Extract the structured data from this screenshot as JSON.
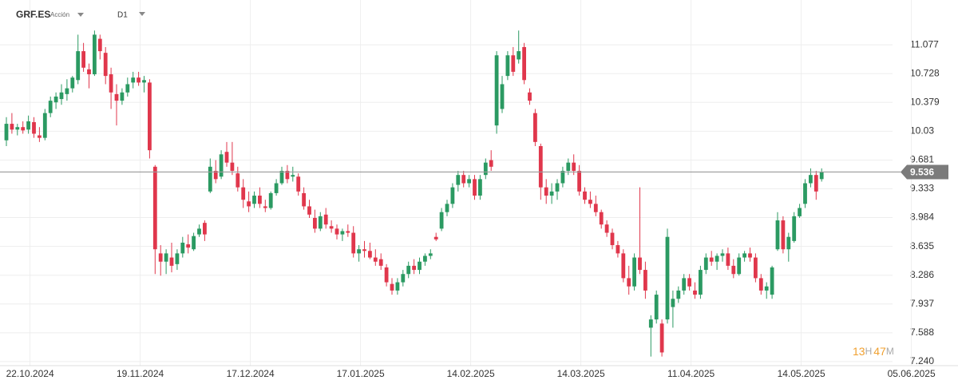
{
  "header": {
    "symbol": "GRF.ES",
    "instrument": "Acción",
    "timeframe": "D1"
  },
  "countdown": [
    "13",
    "H",
    "47",
    "M"
  ],
  "chart_data": {
    "type": "candlestick",
    "up_color": "#2b9a62",
    "down_color": "#e0374c",
    "grid": true,
    "last_price": 9.536,
    "ylim": [
      7.19,
      11.62
    ],
    "yticks": [
      {
        "value": 7.24,
        "label": "7.240"
      },
      7.588,
      7.937,
      8.286,
      8.635,
      8.984,
      9.333,
      9.681,
      10.03,
      10.379,
      10.728,
      11.077
    ],
    "categories": [
      null,
      null,
      null,
      null,
      "22.10.2024",
      null,
      null,
      null,
      null,
      null,
      null,
      null,
      null,
      null,
      null,
      null,
      null,
      null,
      null,
      null,
      null,
      null,
      null,
      null,
      "19.11.2024",
      null,
      null,
      null,
      null,
      null,
      null,
      null,
      null,
      null,
      null,
      null,
      null,
      null,
      null,
      null,
      null,
      null,
      null,
      null,
      "17.12.2024",
      null,
      null,
      null,
      null,
      null,
      null,
      null,
      null,
      null,
      null,
      null,
      null,
      null,
      null,
      null,
      null,
      null,
      null,
      null,
      "17.01.2025",
      null,
      null,
      null,
      null,
      null,
      null,
      null,
      null,
      null,
      null,
      null,
      null,
      null,
      null,
      null,
      null,
      null,
      null,
      null,
      "14.02.2025",
      null,
      null,
      null,
      null,
      null,
      null,
      null,
      null,
      null,
      null,
      null,
      null,
      null,
      null,
      null,
      null,
      null,
      null,
      null,
      "14.03.2025",
      null,
      null,
      null,
      null,
      null,
      null,
      null,
      null,
      null,
      null,
      null,
      null,
      null,
      null,
      null,
      null,
      null,
      null,
      null,
      "11.04.2025",
      null,
      null,
      null,
      null,
      null,
      null,
      null,
      null,
      null,
      null,
      null,
      null,
      null,
      null,
      null,
      null,
      null,
      null,
      null,
      "14.05.2025",
      null,
      null,
      null,
      null,
      null,
      null,
      null,
      null,
      null,
      null,
      null,
      null,
      null,
      null,
      null,
      null,
      null,
      null,
      null,
      "05.06.2025"
    ],
    "open": [
      9.92,
      10.12,
      10.05,
      10.08,
      10.05,
      10.14,
      9.98,
      9.95,
      10.25,
      10.38,
      10.42,
      10.48,
      10.55,
      10.65,
      11.0,
      10.78,
      10.72,
      11.15,
      10.98,
      10.72,
      10.48,
      10.4,
      10.5,
      10.62,
      10.68,
      10.62,
      10.62,
      9.6,
      8.55,
      8.45,
      8.5,
      8.42,
      8.55,
      8.66,
      8.6,
      8.78,
      8.92,
      9.3,
      9.55,
      9.48,
      9.78,
      9.65,
      9.52,
      9.35,
      9.18,
      9.15,
      9.25,
      9.12,
      9.1,
      9.28,
      9.4,
      9.55,
      9.48,
      9.48,
      9.28,
      9.12,
      8.98,
      8.85,
      9.02,
      8.88,
      8.85,
      8.78,
      8.82,
      8.8,
      8.55,
      8.6,
      8.58,
      8.5,
      8.48,
      8.38,
      8.18,
      8.1,
      8.2,
      8.3,
      8.4,
      8.35,
      8.45,
      8.52,
      8.75,
      8.85,
      9.05,
      9.15,
      9.38,
      9.5,
      9.4,
      9.45,
      9.25,
      9.5,
      9.68,
      10.1,
      10.3,
      10.7,
      10.95,
      10.9,
      11.05,
      10.5,
      10.25,
      9.85,
      9.35,
      9.25,
      9.3,
      9.4,
      9.55,
      9.65,
      9.55,
      9.3,
      9.2,
      9.15,
      9.05,
      8.9,
      8.8,
      8.65,
      8.55,
      8.25,
      8.15,
      8.5,
      8.35,
      7.65,
      7.75,
      7.7,
      7.75,
      7.9,
      8.0,
      8.1,
      8.25,
      8.1,
      8.05,
      8.35,
      8.5,
      8.45,
      8.52,
      8.55,
      8.4,
      8.3,
      8.5,
      8.55,
      8.5,
      8.25,
      8.1,
      8.05,
      8.6,
      8.95,
      8.6,
      8.7,
      9.0,
      9.15,
      9.4,
      9.5,
      9.45,
      null,
      null,
      null,
      null,
      null,
      null,
      null,
      null,
      null,
      null,
      null,
      null,
      null,
      null,
      null,
      null
    ],
    "high": [
      10.2,
      10.25,
      10.12,
      10.15,
      10.22,
      10.2,
      10.08,
      10.3,
      10.45,
      10.5,
      10.6,
      10.66,
      10.7,
      11.2,
      11.1,
      10.85,
      11.25,
      11.2,
      11.05,
      10.8,
      10.6,
      10.55,
      10.68,
      10.75,
      10.75,
      10.7,
      10.66,
      9.62,
      8.65,
      8.6,
      8.68,
      8.6,
      8.75,
      8.78,
      8.8,
      8.9,
      8.95,
      9.7,
      9.68,
      9.8,
      9.9,
      9.9,
      9.6,
      9.45,
      9.3,
      9.3,
      9.35,
      9.2,
      9.3,
      9.45,
      9.6,
      9.62,
      9.6,
      9.52,
      9.35,
      9.2,
      9.08,
      9.05,
      9.1,
      8.95,
      8.9,
      8.85,
      8.9,
      8.88,
      8.65,
      8.7,
      8.68,
      8.6,
      8.55,
      8.42,
      8.25,
      8.25,
      8.35,
      8.45,
      8.48,
      8.5,
      8.55,
      8.6,
      8.8,
      9.1,
      9.2,
      9.4,
      9.55,
      9.55,
      9.5,
      9.5,
      9.5,
      9.7,
      9.8,
      11.0,
      10.7,
      11.0,
      11.05,
      11.25,
      11.1,
      10.55,
      10.3,
      9.88,
      9.45,
      9.4,
      9.45,
      9.6,
      9.7,
      9.75,
      9.62,
      9.35,
      9.3,
      9.25,
      9.08,
      8.95,
      8.85,
      8.7,
      8.6,
      8.4,
      8.55,
      9.35,
      8.45,
      7.8,
      8.1,
      7.75,
      8.85,
      8.1,
      8.15,
      8.3,
      8.3,
      8.2,
      8.4,
      8.55,
      8.58,
      8.55,
      8.6,
      8.62,
      8.48,
      8.55,
      8.58,
      8.62,
      8.55,
      8.3,
      8.2,
      8.4,
      9.05,
      9.0,
      8.8,
      9.05,
      9.15,
      9.45,
      9.58,
      9.55,
      9.58,
      null,
      null,
      null,
      null,
      null,
      null,
      null,
      null,
      null,
      null,
      null,
      null,
      null,
      null,
      null,
      null
    ],
    "low": [
      9.85,
      10.0,
      9.98,
      10.0,
      10.0,
      9.95,
      9.9,
      9.92,
      10.2,
      10.3,
      10.35,
      10.4,
      10.5,
      10.6,
      10.75,
      10.55,
      10.7,
      10.9,
      10.6,
      10.3,
      10.1,
      10.35,
      10.45,
      10.55,
      10.58,
      10.5,
      9.7,
      8.3,
      8.28,
      8.3,
      8.32,
      8.35,
      8.5,
      8.55,
      8.58,
      8.75,
      8.7,
      9.28,
      9.4,
      9.45,
      9.6,
      9.5,
      9.3,
      9.1,
      9.05,
      9.1,
      9.1,
      9.05,
      9.08,
      9.25,
      9.38,
      9.4,
      9.42,
      9.25,
      9.08,
      8.98,
      8.8,
      8.82,
      8.85,
      8.8,
      8.72,
      8.7,
      8.75,
      8.5,
      8.45,
      8.5,
      8.48,
      8.4,
      8.35,
      8.15,
      8.05,
      8.05,
      8.15,
      8.25,
      8.3,
      8.3,
      8.4,
      8.48,
      8.7,
      8.82,
      9.0,
      9.1,
      9.3,
      9.35,
      9.35,
      9.2,
      9.2,
      9.45,
      9.55,
      10.0,
      10.25,
      10.65,
      10.7,
      10.85,
      10.6,
      10.35,
      9.85,
      9.2,
      9.15,
      9.15,
      9.2,
      9.35,
      9.5,
      9.5,
      9.25,
      9.15,
      9.1,
      9.0,
      8.85,
      8.75,
      8.6,
      8.5,
      8.2,
      8.05,
      8.1,
      8.3,
      8.0,
      7.3,
      7.7,
      7.3,
      7.7,
      7.65,
      7.95,
      8.05,
      8.1,
      8.0,
      8.0,
      8.3,
      8.4,
      8.35,
      8.45,
      8.35,
      8.25,
      8.28,
      8.45,
      8.45,
      8.2,
      8.05,
      8.0,
      8.0,
      8.58,
      8.55,
      8.45,
      8.68,
      8.98,
      9.1,
      9.35,
      9.2,
      9.42,
      null,
      null,
      null,
      null,
      null,
      null,
      null,
      null,
      null,
      null,
      null,
      null,
      null,
      null,
      null,
      null
    ],
    "close": [
      10.12,
      10.05,
      10.08,
      10.04,
      10.15,
      10.0,
      9.95,
      10.25,
      10.4,
      10.45,
      10.5,
      10.55,
      10.68,
      11.0,
      10.8,
      10.72,
      11.2,
      11.0,
      10.7,
      10.5,
      10.4,
      10.5,
      10.6,
      10.68,
      10.62,
      10.65,
      9.8,
      8.6,
      8.45,
      8.55,
      8.4,
      8.55,
      8.68,
      8.62,
      8.76,
      8.85,
      8.78,
      9.6,
      9.45,
      9.75,
      9.65,
      9.55,
      9.35,
      9.2,
      9.12,
      9.25,
      9.15,
      9.1,
      9.28,
      9.4,
      9.55,
      9.45,
      9.5,
      9.3,
      9.12,
      9.02,
      8.85,
      9.0,
      8.9,
      8.85,
      8.78,
      8.82,
      8.8,
      8.55,
      8.6,
      8.58,
      8.5,
      8.45,
      8.4,
      8.2,
      8.1,
      8.2,
      8.3,
      8.4,
      8.35,
      8.45,
      8.52,
      8.55,
      8.72,
      9.05,
      9.15,
      9.35,
      9.5,
      9.4,
      9.45,
      9.25,
      9.45,
      9.65,
      9.6,
      10.95,
      10.6,
      10.95,
      10.75,
      11.0,
      10.65,
      10.4,
      9.9,
      9.35,
      9.25,
      9.3,
      9.4,
      9.55,
      9.65,
      9.55,
      9.3,
      9.2,
      9.15,
      9.05,
      8.9,
      8.8,
      8.65,
      8.55,
      8.25,
      8.15,
      8.5,
      8.35,
      8.1,
      7.75,
      8.05,
      7.35,
      8.75,
      8.0,
      8.1,
      8.25,
      8.15,
      8.05,
      8.35,
      8.5,
      8.45,
      8.52,
      8.55,
      8.4,
      8.3,
      8.5,
      8.55,
      8.5,
      8.25,
      8.1,
      8.15,
      8.38,
      8.95,
      8.6,
      8.75,
      9.0,
      9.1,
      9.4,
      9.5,
      9.3,
      9.536,
      null,
      null,
      null,
      null,
      null,
      null,
      null,
      null,
      null,
      null,
      null,
      null,
      null,
      null,
      null,
      null
    ]
  }
}
